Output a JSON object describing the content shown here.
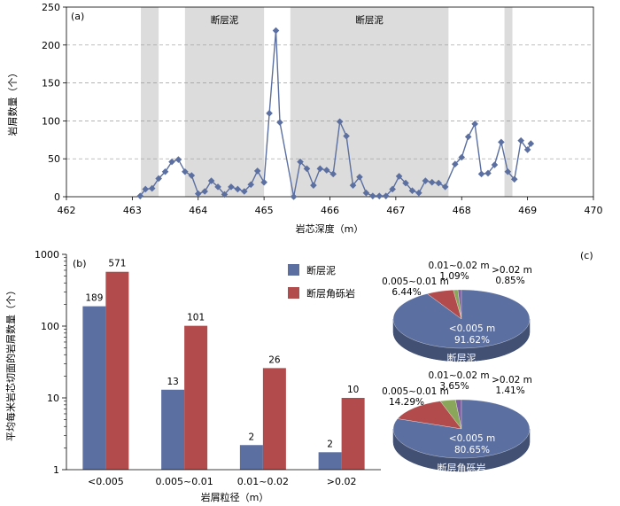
{
  "chart_data": [
    {
      "id": "a",
      "type": "line",
      "panel_label": "(a)",
      "xlabel": "岩芯深度（m）",
      "ylabel": "岩屑数量（个）",
      "xlim": [
        462,
        470
      ],
      "ylim": [
        0,
        250
      ],
      "xticks": [
        "462",
        "463",
        "464",
        "465",
        "466",
        "467",
        "468",
        "469",
        "470"
      ],
      "yticks": [
        "0",
        "50",
        "100",
        "150",
        "200",
        "250"
      ],
      "grid": "horizontal dashed",
      "line_color": "#5b6fa0",
      "band_color": "#dcdcdc",
      "bands": [
        {
          "x0": 463.13,
          "x1": 463.4,
          "label": ""
        },
        {
          "x0": 463.8,
          "x1": 465.0,
          "label": "断层泥"
        },
        {
          "x0": 465.4,
          "x1": 467.8,
          "label": "断层泥"
        },
        {
          "x0": 468.65,
          "x1": 468.77,
          "label": ""
        }
      ],
      "points": [
        [
          463.12,
          1
        ],
        [
          463.2,
          10
        ],
        [
          463.3,
          11
        ],
        [
          463.4,
          24
        ],
        [
          463.5,
          33
        ],
        [
          463.6,
          46
        ],
        [
          463.7,
          49
        ],
        [
          463.8,
          33
        ],
        [
          463.9,
          28
        ],
        [
          464.0,
          4
        ],
        [
          464.1,
          7
        ],
        [
          464.2,
          21
        ],
        [
          464.3,
          13
        ],
        [
          464.4,
          3
        ],
        [
          464.5,
          13
        ],
        [
          464.6,
          10
        ],
        [
          464.7,
          7
        ],
        [
          464.8,
          16
        ],
        [
          464.9,
          34
        ],
        [
          465.0,
          19
        ],
        [
          465.08,
          110
        ],
        [
          465.18,
          219
        ],
        [
          465.24,
          98
        ],
        [
          465.45,
          0
        ],
        [
          465.55,
          46
        ],
        [
          465.65,
          37
        ],
        [
          465.75,
          15
        ],
        [
          465.85,
          37
        ],
        [
          465.95,
          35
        ],
        [
          466.05,
          30
        ],
        [
          466.15,
          99
        ],
        [
          466.25,
          80
        ],
        [
          466.35,
          15
        ],
        [
          466.45,
          26
        ],
        [
          466.55,
          5
        ],
        [
          466.65,
          1
        ],
        [
          466.75,
          1
        ],
        [
          466.85,
          1
        ],
        [
          466.95,
          10
        ],
        [
          467.05,
          27
        ],
        [
          467.15,
          18
        ],
        [
          467.25,
          8
        ],
        [
          467.35,
          5
        ],
        [
          467.45,
          21
        ],
        [
          467.55,
          19
        ],
        [
          467.65,
          18
        ],
        [
          467.75,
          13
        ],
        [
          467.9,
          43
        ],
        [
          468.0,
          52
        ],
        [
          468.1,
          79
        ],
        [
          468.2,
          96
        ],
        [
          468.3,
          30
        ],
        [
          468.4,
          31
        ],
        [
          468.5,
          42
        ],
        [
          468.6,
          72
        ],
        [
          468.7,
          33
        ],
        [
          468.8,
          23
        ],
        [
          468.9,
          74
        ],
        [
          469.0,
          62
        ],
        [
          469.05,
          70
        ]
      ]
    },
    {
      "id": "b",
      "type": "bar",
      "panel_label": "(b)",
      "scale": "log",
      "xlabel": "岩屑粒径（m）",
      "ylabel": "平均每米岩芯切面的岩屑数量（个）",
      "ylim": [
        1,
        1000
      ],
      "yticks": [
        "1",
        "10",
        "100",
        "1000"
      ],
      "categories": [
        "<0.005",
        "0.005~0.01",
        "0.01~0.02",
        ">0.02"
      ],
      "series": [
        {
          "name": "断层泥",
          "color": "#5b6fa0",
          "values": [
            189,
            13,
            2.2,
            1.75
          ],
          "labels": [
            "189",
            "13",
            "2",
            "2"
          ]
        },
        {
          "name": "断层角砾岩",
          "color": "#b24b4b",
          "values": [
            571,
            101,
            26,
            10
          ],
          "labels": [
            "571",
            "101",
            "26",
            "10"
          ]
        }
      ],
      "legend": "top-right"
    },
    {
      "id": "c",
      "type": "pie",
      "panel_label": "(c)",
      "pies": [
        {
          "title": "断层泥",
          "slices": [
            {
              "name": "<0.005 m",
              "value": 91.62,
              "label": "91.62%",
              "color": "#5b6fa0"
            },
            {
              "name": "0.005~0.01 m",
              "value": 6.44,
              "label": "6.44%",
              "color": "#b24b4b"
            },
            {
              "name": "0.01~0.02 m",
              "value": 1.09,
              "label": "1.09%",
              "color": "#8aa65a"
            },
            {
              "name": ">0.02 m",
              "value": 0.85,
              "label": "0.85%",
              "color": "#7b5c9e"
            }
          ]
        },
        {
          "title": "断层角砾岩",
          "slices": [
            {
              "name": "<0.005 m",
              "value": 80.65,
              "label": "80.65%",
              "color": "#5b6fa0"
            },
            {
              "name": "0.005~0.01 m",
              "value": 14.29,
              "label": "14.29%",
              "color": "#b24b4b"
            },
            {
              "name": "0.01~0.02 m",
              "value": 3.65,
              "label": "3.65%",
              "color": "#8aa65a"
            },
            {
              "name": ">0.02 m",
              "value": 1.41,
              "label": "1.41%",
              "color": "#7b5c9e"
            }
          ]
        }
      ]
    }
  ]
}
